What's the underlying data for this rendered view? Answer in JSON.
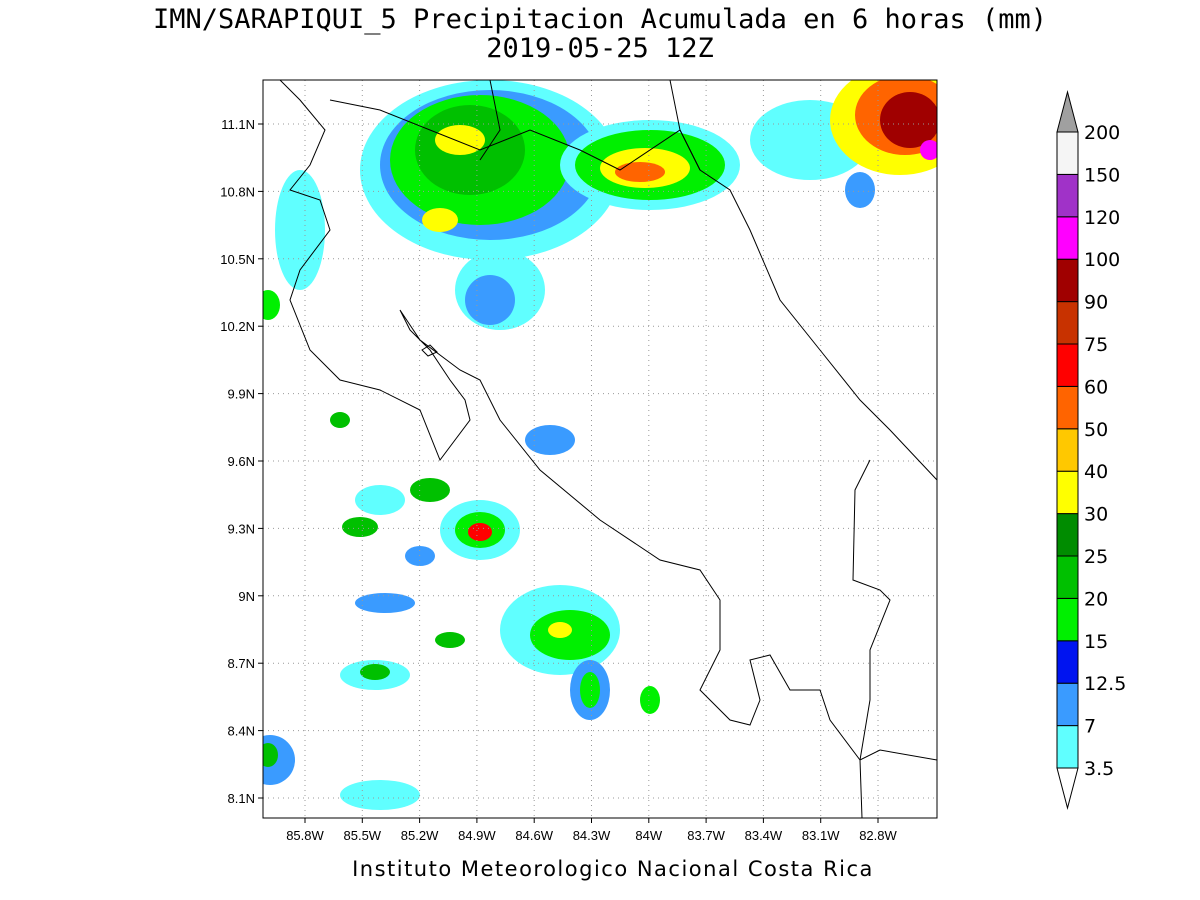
{
  "title": "IMN/SARAPIQUI_5 Precipitacion Acumulada en 6 horas (mm)",
  "subtitle": "2019-05-25 12Z",
  "map": {
    "lat_labels": [
      "11.1N",
      "10.8N",
      "10.5N",
      "10.2N",
      "9.9N",
      "9.6N",
      "9.3N",
      "9N",
      "8.7N",
      "8.4N",
      "8.1N"
    ],
    "lon_labels": [
      "85.8W",
      "85.5W",
      "85.2W",
      "84.9W",
      "84.6W",
      "84.3W",
      "84W",
      "83.7W",
      "83.4W",
      "83.1W",
      "82.8W"
    ]
  },
  "colorbar": {
    "levels": [
      3.5,
      7,
      12.5,
      15,
      20,
      25,
      30,
      40,
      50,
      60,
      75,
      90,
      100,
      120,
      150,
      200
    ],
    "colors": [
      "#ffffff",
      "#60ffff",
      "#3a9bff",
      "#0014f0",
      "#00f000",
      "#00c000",
      "#008c00",
      "#ffff00",
      "#ffc800",
      "#ff6400",
      "#ff0000",
      "#c83200",
      "#a00000",
      "#ff00ff",
      "#a032c8",
      "#f5f5f5",
      "#a0a0a0"
    ]
  },
  "footer": "Instituto Meteorologico Nacional Costa Rica"
}
